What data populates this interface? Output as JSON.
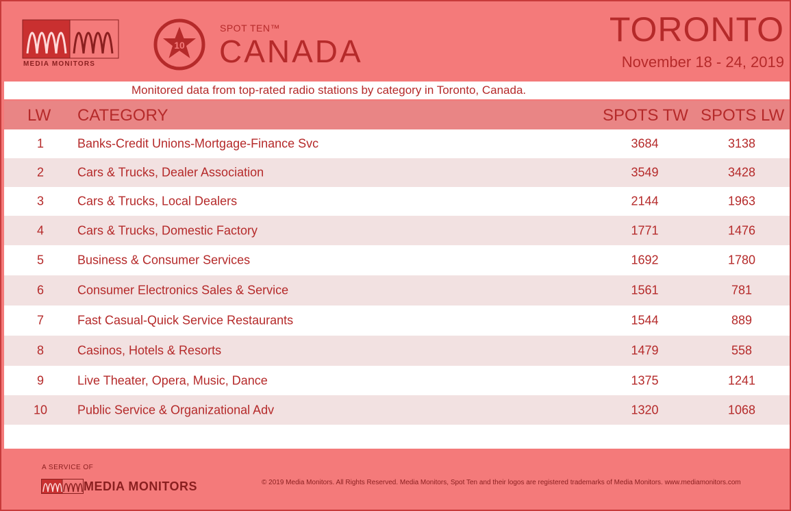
{
  "header": {
    "brand_label": "MEDIA MONITORS",
    "star_number": "10",
    "spot_ten": "SPOT TEN™",
    "country": "CANADA",
    "city": "TORONTO",
    "date_range": "November 18 - 24, 2019"
  },
  "subtitle": "Monitored data from top-rated radio stations by category in Toronto, Canada.",
  "columns": {
    "lw": "LW",
    "category": "CATEGORY",
    "spots_tw": "SPOTS TW",
    "spots_lw": "SPOTS LW"
  },
  "rows": [
    {
      "rank": "1",
      "category": "Banks-Credit Unions-Mortgage-Finance Svc",
      "tw": "3684",
      "lw": "3138"
    },
    {
      "rank": "2",
      "category": "Cars & Trucks, Dealer Association",
      "tw": "3549",
      "lw": "3428"
    },
    {
      "rank": "3",
      "category": "Cars & Trucks, Local Dealers",
      "tw": "2144",
      "lw": "1963"
    },
    {
      "rank": "4",
      "category": "Cars & Trucks, Domestic Factory",
      "tw": "1771",
      "lw": "1476"
    },
    {
      "rank": "5",
      "category": "Business & Consumer Services",
      "tw": "1692",
      "lw": "1780"
    },
    {
      "rank": "6",
      "category": "Consumer Electronics Sales & Service",
      "tw": "1561",
      "lw": "781"
    },
    {
      "rank": "7",
      "category": "Fast Casual-Quick Service Restaurants",
      "tw": "1544",
      "lw": "889"
    },
    {
      "rank": "8",
      "category": "Casinos, Hotels & Resorts",
      "tw": "1479",
      "lw": "558"
    },
    {
      "rank": "9",
      "category": "Live Theater, Opera, Music, Dance",
      "tw": "1375",
      "lw": "1241"
    },
    {
      "rank": "10",
      "category": "Public Service & Organizational Adv",
      "tw": "1320",
      "lw": "1068"
    }
  ],
  "footer": {
    "service_of": "A SERVICE OF",
    "brand": "MEDIA MONITORS",
    "copyright": "© 2019 Media Monitors. All Rights Reserved. Media Monitors, Spot Ten and their logos are registered trademarks of Media Monitors. www.mediamonitors.com"
  },
  "colors": {
    "background": "#f47a7a",
    "text": "#b52a2a",
    "header_row": "#e98585",
    "alt_row": "#f2e1e1"
  }
}
